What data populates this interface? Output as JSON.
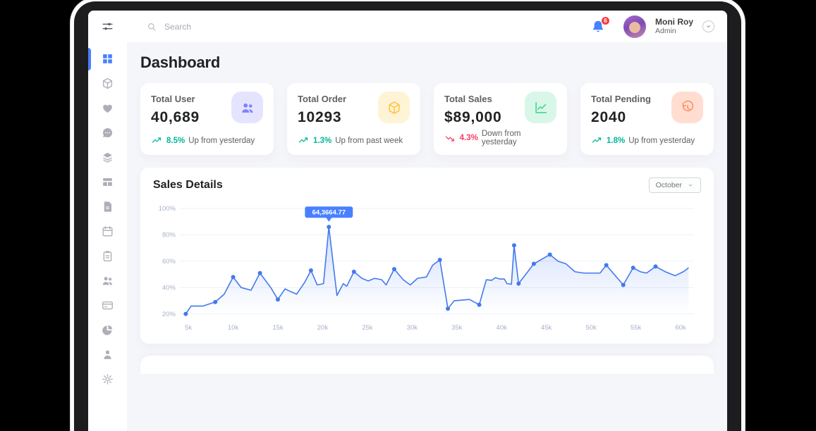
{
  "topbar": {
    "search_placeholder": "Search",
    "notification_count": "6",
    "user": {
      "name": "Moni Roy",
      "role": "Admin"
    }
  },
  "sidebar": {
    "menu_toggle_icon": "sliders",
    "items": [
      {
        "name": "dashboard",
        "icon": "grid",
        "active": true
      },
      {
        "name": "products",
        "icon": "cube",
        "active": false
      },
      {
        "name": "favorites",
        "icon": "heart",
        "active": false
      },
      {
        "name": "messages",
        "icon": "chat",
        "active": false
      },
      {
        "name": "order-lists",
        "icon": "layers",
        "active": false
      },
      {
        "name": "stock",
        "icon": "table",
        "active": false
      },
      {
        "name": "documents",
        "icon": "doc",
        "active": false
      },
      {
        "name": "calendar",
        "icon": "calendar",
        "active": false
      },
      {
        "name": "tasks",
        "icon": "clipboard",
        "active": false
      },
      {
        "name": "contacts",
        "icon": "users",
        "active": false
      },
      {
        "name": "invoice",
        "icon": "card",
        "active": false
      },
      {
        "name": "analytics",
        "icon": "pie",
        "active": false
      },
      {
        "name": "profile",
        "icon": "person",
        "active": false
      },
      {
        "name": "settings",
        "icon": "gear",
        "active": false
      }
    ]
  },
  "page": {
    "title": "Dashboard"
  },
  "stat_cards": [
    {
      "label": "Total User",
      "value": "40,689",
      "icon": "users",
      "icon_color": "#8280FF",
      "icon_bg": "#E5E4FF",
      "trend_dir": "up",
      "trend_value": "8.5%",
      "trend_text": "Up from yesterday",
      "trend_color": "#00B69B"
    },
    {
      "label": "Total Order",
      "value": "10293",
      "icon": "cube",
      "icon_color": "#FEC53D",
      "icon_bg": "#FFF3D6",
      "trend_dir": "up",
      "trend_value": "1.3%",
      "trend_text": "Up from past week",
      "trend_color": "#00B69B"
    },
    {
      "label": "Total Sales",
      "value": "$89,000",
      "icon": "chart",
      "icon_color": "#4AD991",
      "icon_bg": "#D9F7E8",
      "trend_dir": "down",
      "trend_value": "4.3%",
      "trend_text": "Down from yesterday",
      "trend_color": "#F93C65"
    },
    {
      "label": "Total Pending",
      "value": "2040",
      "icon": "history",
      "icon_color": "#FF9066",
      "icon_bg": "#FFDED1",
      "trend_dir": "up",
      "trend_value": "1.8%",
      "trend_text": "Up from yesterday",
      "trend_color": "#00B69B"
    }
  ],
  "sales_card": {
    "title": "Sales Details",
    "period_selector": "October"
  },
  "chart_data": {
    "type": "area",
    "title": "Sales Details",
    "xlabel": "",
    "ylabel": "",
    "xlim": [
      4.2,
      61.5
    ],
    "ylim": [
      20,
      100
    ],
    "x_ticks": [
      "5k",
      "10k",
      "15k",
      "20k",
      "25k",
      "30k",
      "35k",
      "40k",
      "45k",
      "50k",
      "55k",
      "60k"
    ],
    "y_ticks": [
      "20%",
      "40%",
      "60%",
      "80%",
      "100%"
    ],
    "grid": "horizontal",
    "legend": "none",
    "series": [
      {
        "name": "sales-percent",
        "color": "#4379EE",
        "points": [
          [
            4.7,
            20,
            1
          ],
          [
            5.3,
            26,
            0
          ],
          [
            6.6,
            26,
            0
          ],
          [
            8,
            29,
            1
          ],
          [
            9,
            35,
            0
          ],
          [
            10,
            48,
            1
          ],
          [
            10.9,
            40,
            0
          ],
          [
            12,
            38,
            0
          ],
          [
            13,
            51,
            1
          ],
          [
            14.2,
            40,
            0
          ],
          [
            15,
            31,
            1
          ],
          [
            15.8,
            39,
            0
          ],
          [
            16.4,
            37,
            0
          ],
          [
            17.1,
            35,
            0
          ],
          [
            18,
            44,
            0
          ],
          [
            18.7,
            53,
            1
          ],
          [
            19.4,
            42,
            0
          ],
          [
            20.1,
            43,
            0
          ],
          [
            20.7,
            86,
            1
          ],
          [
            21.6,
            34,
            0
          ],
          [
            22.3,
            43,
            0
          ],
          [
            22.7,
            41,
            0
          ],
          [
            23.5,
            52,
            1
          ],
          [
            24.4,
            47,
            0
          ],
          [
            25.1,
            45,
            0
          ],
          [
            25.8,
            47,
            0
          ],
          [
            26.6,
            46,
            0
          ],
          [
            27.1,
            42,
            0
          ],
          [
            28,
            54,
            1
          ],
          [
            29,
            46,
            0
          ],
          [
            29.8,
            42,
            0
          ],
          [
            30.6,
            47,
            0
          ],
          [
            31.6,
            48,
            0
          ],
          [
            32.3,
            57,
            0
          ],
          [
            33.1,
            61,
            1
          ],
          [
            34,
            24,
            1
          ],
          [
            34.7,
            30,
            0
          ],
          [
            35.6,
            30.5,
            0
          ],
          [
            36.4,
            31,
            0
          ],
          [
            37.5,
            27,
            1
          ],
          [
            38.3,
            46,
            0
          ],
          [
            38.9,
            45.5,
            0
          ],
          [
            39.3,
            47.5,
            0
          ],
          [
            39.8,
            46.5,
            0
          ],
          [
            40.3,
            46.5,
            0
          ],
          [
            40.6,
            43,
            0
          ],
          [
            41.1,
            42.5,
            0
          ],
          [
            41.4,
            72,
            1
          ],
          [
            41.9,
            43,
            1
          ],
          [
            43.6,
            58,
            1
          ],
          [
            45.4,
            65,
            1
          ],
          [
            46.3,
            60,
            0
          ],
          [
            47.2,
            58,
            0
          ],
          [
            48.2,
            52,
            0
          ],
          [
            49.2,
            51,
            0
          ],
          [
            50.2,
            51,
            0
          ],
          [
            51,
            51,
            0
          ],
          [
            51.7,
            57,
            1
          ],
          [
            53.6,
            42,
            1
          ],
          [
            54.7,
            55,
            1
          ],
          [
            55.5,
            52,
            0
          ],
          [
            56.2,
            51,
            0
          ],
          [
            57.2,
            56,
            1
          ],
          [
            58.3,
            52,
            0
          ],
          [
            59.4,
            49,
            0
          ],
          [
            60.3,
            52,
            0
          ],
          [
            60.9,
            55,
            0
          ]
        ]
      }
    ],
    "tooltip": {
      "x": 20.7,
      "y": 86,
      "label": "64,3664.77",
      "color": "#4880FF"
    }
  },
  "colors": {
    "accent": "#4880FF",
    "app_bg": "#F5F6FA",
    "trend_up": "#00B69B",
    "trend_down": "#F93C65",
    "chart_line": "#4379EE",
    "badge": "#FA3E3E"
  }
}
